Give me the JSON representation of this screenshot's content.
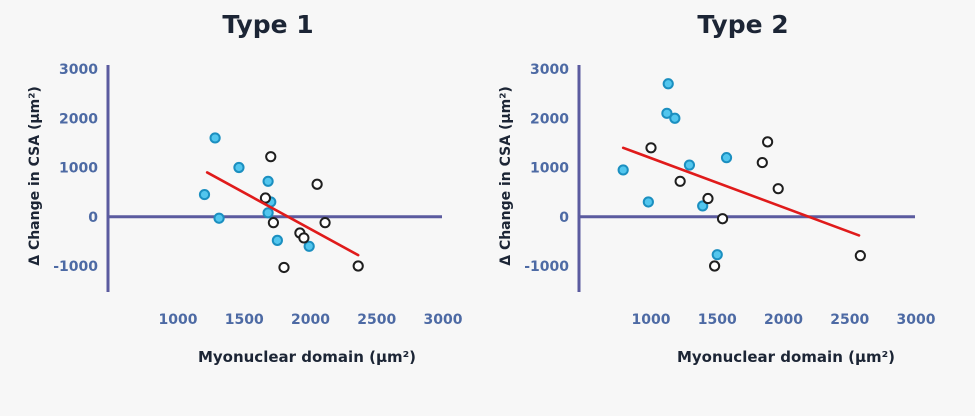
{
  "colors": {
    "axis": "#5b5b9f",
    "tick_text": "#4d6aa4",
    "trend": "#e01b1b",
    "cyan_fill": "#52c6ee",
    "cyan_stroke": "#1b8fc0",
    "dark_stroke": "#1f1f1f"
  },
  "chart_data": [
    {
      "type": "scatter",
      "title": "Type 1",
      "xlabel": "Myonuclear domain (µm²)",
      "ylabel": "Δ Change in CSA (µm²)",
      "xlim": [
        500,
        3000
      ],
      "ylim": [
        -1500,
        3000
      ],
      "xticks": [
        1000,
        1500,
        2000,
        2500,
        3000
      ],
      "yticks": [
        3000,
        2000,
        1000,
        0,
        -1000
      ],
      "xtick_labels": [
        "1000",
        "1500",
        "2000",
        "2500",
        "3000"
      ],
      "ytick_labels": [
        "3000",
        "2000",
        "1000",
        "0",
        "-1000"
      ],
      "grid": false,
      "trendline": {
        "x": [
          1220,
          2360
        ],
        "y": [
          900,
          -780
        ]
      },
      "series": [
        {
          "marker": "filled-cyan",
          "x": [
            1280,
            1460,
            1200,
            1680,
            1700,
            1310,
            1680,
            1750,
            1990
          ],
          "y": [
            1600,
            1000,
            450,
            720,
            300,
            -30,
            80,
            -480,
            -600
          ]
        },
        {
          "marker": "hollow-dark",
          "x": [
            1700,
            2050,
            1660,
            1720,
            2110,
            1920,
            1950,
            1800,
            2360
          ],
          "y": [
            1220,
            660,
            380,
            -120,
            -120,
            -330,
            -430,
            -1030,
            -1000
          ]
        }
      ]
    },
    {
      "type": "scatter",
      "title": "Type 2",
      "xlabel": "Myonuclear domain (µm²)",
      "ylabel": "Δ Change in CSA (µm²)",
      "xlim": [
        500,
        3000
      ],
      "ylim": [
        -1500,
        3000
      ],
      "xticks": [
        1000,
        1500,
        2000,
        2500,
        3000
      ],
      "yticks": [
        3000,
        2000,
        1000,
        0,
        -1000
      ],
      "xtick_labels": [
        "1000",
        "1500",
        "2000",
        "2500",
        "3000"
      ],
      "ytick_labels": [
        "3000",
        "2000",
        "1000",
        "0",
        "-1000"
      ],
      "grid": false,
      "trendline": {
        "x": [
          790,
          2570
        ],
        "y": [
          1400,
          -380
        ]
      },
      "series": [
        {
          "marker": "filled-cyan",
          "x": [
            1130,
            1120,
            1180,
            790,
            1290,
            1570,
            980,
            1390,
            1500
          ],
          "y": [
            2700,
            2100,
            2000,
            950,
            1050,
            1200,
            300,
            220,
            -770
          ]
        },
        {
          "marker": "hollow-dark",
          "x": [
            1000,
            1220,
            1880,
            1840,
            1960,
            1430,
            1540,
            1480,
            2580
          ],
          "y": [
            1400,
            720,
            1520,
            1100,
            570,
            370,
            -40,
            -1000,
            -790
          ]
        }
      ]
    }
  ]
}
